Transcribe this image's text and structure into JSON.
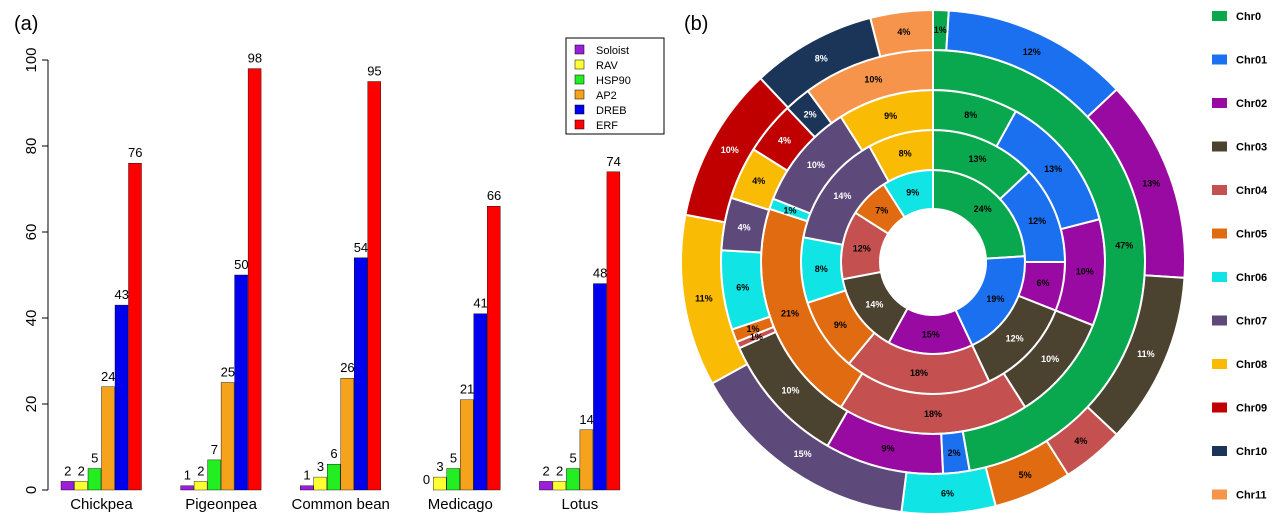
{
  "panel_a_label": "(a)",
  "panel_b_label": "(b)",
  "chart_data": [
    {
      "type": "bar",
      "categories": [
        "Chickpea",
        "Pigeonpea",
        "Common bean",
        "Medicago",
        "Lotus"
      ],
      "series": [
        {
          "name": "Soloist",
          "color": "#9a1fd8",
          "values": [
            2,
            1,
            1,
            0,
            2
          ]
        },
        {
          "name": "RAV",
          "color": "#ffff33",
          "values": [
            2,
            2,
            3,
            3,
            2
          ]
        },
        {
          "name": "HSP90",
          "color": "#22ee22",
          "values": [
            5,
            7,
            6,
            5,
            5
          ]
        },
        {
          "name": "AP2",
          "color": "#f5a21c",
          "values": [
            24,
            25,
            26,
            21,
            14
          ]
        },
        {
          "name": "DREB",
          "color": "#0000ee",
          "values": [
            43,
            50,
            54,
            41,
            48
          ]
        },
        {
          "name": "ERF",
          "color": "#ff0000",
          "values": [
            76,
            98,
            95,
            66,
            74
          ]
        }
      ],
      "ylim": [
        0,
        100
      ],
      "yticks": [
        "0",
        "20",
        "40",
        "60",
        "80",
        "100"
      ],
      "legend_position": "top-right"
    },
    {
      "type": "pie",
      "chart_kind": "multi-ring donut",
      "legend": [
        {
          "name": "Chr0",
          "color": "#0aa84e"
        },
        {
          "name": "Chr01",
          "color": "#1a70ee"
        },
        {
          "name": "Chr02",
          "color": "#990aa2"
        },
        {
          "name": "Chr03",
          "color": "#4b4330"
        },
        {
          "name": "Chr04",
          "color": "#c45050"
        },
        {
          "name": "Chr05",
          "color": "#e06b10"
        },
        {
          "name": "Chr06",
          "color": "#10e4e4"
        },
        {
          "name": "Chr07",
          "color": "#5e4a7a"
        },
        {
          "name": "Chr08",
          "color": "#fabb05"
        },
        {
          "name": "Chr09",
          "color": "#c00000"
        },
        {
          "name": "Chr10",
          "color": "#1a3558"
        },
        {
          "name": "Chr11",
          "color": "#f6944c"
        }
      ],
      "rings": [
        {
          "slices": [
            {
              "chr": "Chr0",
              "value": 24,
              "label": "24%"
            },
            {
              "chr": "Chr01",
              "value": 19,
              "label": "19%"
            },
            {
              "chr": "Chr02",
              "value": 15,
              "label": "15%"
            },
            {
              "chr": "Chr03",
              "value": 14,
              "label": "14%"
            },
            {
              "chr": "Chr04",
              "value": 12,
              "label": "12%"
            },
            {
              "chr": "Chr05",
              "value": 7,
              "label": "7%"
            },
            {
              "chr": "Chr06",
              "value": 9,
              "label": "9%"
            }
          ]
        },
        {
          "slices": [
            {
              "chr": "Chr0",
              "value": 13,
              "label": "13%"
            },
            {
              "chr": "Chr01",
              "value": 12,
              "label": "12%"
            },
            {
              "chr": "Chr02",
              "value": 6,
              "label": "6%"
            },
            {
              "chr": "Chr03",
              "value": 12,
              "label": "12%"
            },
            {
              "chr": "Chr04",
              "value": 18,
              "label": "18%"
            },
            {
              "chr": "Chr05",
              "value": 9,
              "label": "9%"
            },
            {
              "chr": "Chr06",
              "value": 8,
              "label": "8%"
            },
            {
              "chr": "Chr07",
              "value": 14,
              "label": "14%"
            },
            {
              "chr": "Chr08",
              "value": 8,
              "label": "8%"
            }
          ]
        },
        {
          "slices": [
            {
              "chr": "Chr0",
              "value": 8,
              "label": "8%"
            },
            {
              "chr": "Chr01",
              "value": 13,
              "label": "13%"
            },
            {
              "chr": "Chr02",
              "value": 10,
              "label": "10%"
            },
            {
              "chr": "Chr03",
              "value": 10,
              "label": "10%"
            },
            {
              "chr": "Chr04",
              "value": 18,
              "label": "18%"
            },
            {
              "chr": "Chr05",
              "value": 21,
              "label": "21%"
            },
            {
              "chr": "Chr06",
              "value": 1,
              "label": "1%"
            },
            {
              "chr": "Chr07",
              "value": 10,
              "label": "10%"
            },
            {
              "chr": "Chr08",
              "value": 9,
              "label": "9%"
            }
          ]
        },
        {
          "slices": [
            {
              "chr": "Chr0",
              "value": 47,
              "label": "47%"
            },
            {
              "chr": "Chr01",
              "value": 2,
              "label": "2%"
            },
            {
              "chr": "Chr02",
              "value": 9,
              "label": "9%"
            },
            {
              "chr": "Chr03",
              "value": 10,
              "label": "10%"
            },
            {
              "chr": "Chr04",
              "value": 0.5,
              "label": "1%"
            },
            {
              "chr": "Chr05",
              "value": 1,
              "label": "1%"
            },
            {
              "chr": "Chr06",
              "value": 6,
              "label": "6%"
            },
            {
              "chr": "Chr07",
              "value": 4,
              "label": "4%"
            },
            {
              "chr": "Chr08",
              "value": 4,
              "label": "4%"
            },
            {
              "chr": "Chr09",
              "value": 4,
              "label": "4%"
            },
            {
              "chr": "Chr10",
              "value": 2,
              "label": "2%"
            },
            {
              "chr": "Chr11",
              "value": 10,
              "label": "10%"
            }
          ]
        },
        {
          "slices": [
            {
              "chr": "Chr0",
              "value": 1,
              "label": "1%"
            },
            {
              "chr": "Chr01",
              "value": 12,
              "label": "12%"
            },
            {
              "chr": "Chr02",
              "value": 13,
              "label": "13%"
            },
            {
              "chr": "Chr03",
              "value": 11,
              "label": "11%"
            },
            {
              "chr": "Chr04",
              "value": 4,
              "label": "4%"
            },
            {
              "chr": "Chr05",
              "value": 5,
              "label": "5%"
            },
            {
              "chr": "Chr06",
              "value": 6,
              "label": "6%"
            },
            {
              "chr": "Chr07",
              "value": 15,
              "label": "15%"
            },
            {
              "chr": "Chr08",
              "value": 11,
              "label": "11%"
            },
            {
              "chr": "Chr09",
              "value": 10,
              "label": "10%"
            },
            {
              "chr": "Chr10",
              "value": 8,
              "label": "8%"
            },
            {
              "chr": "Chr11",
              "value": 4,
              "label": "4%"
            }
          ]
        }
      ]
    }
  ]
}
